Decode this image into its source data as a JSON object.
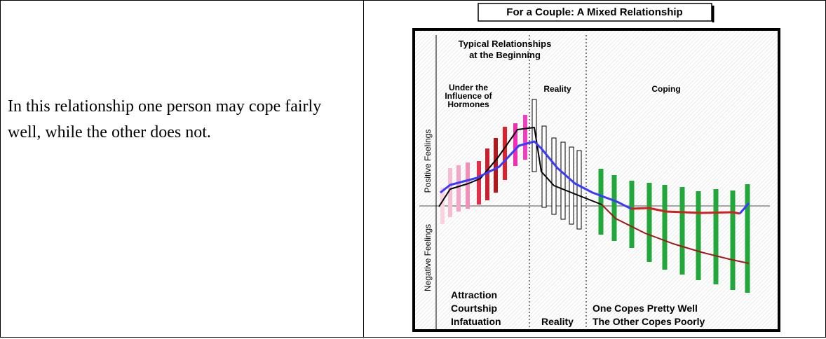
{
  "left_cell": {
    "text": "In this relationship one person may cope fairly well, while the other does not."
  },
  "diagram": {
    "title": "For a Couple: A Mixed Relationship",
    "header": [
      "Typical Relationships",
      "at the Beginning"
    ],
    "phase_labels": {
      "hormones": [
        "Under the",
        "Influence of",
        "Hormones"
      ],
      "reality": "Reality",
      "coping": "Coping"
    },
    "axis_labels": {
      "positive": "Positive Feelings",
      "negative": "Negative Feelings"
    },
    "bottom_labels": {
      "early": [
        "Attraction",
        "Courtship",
        "Infatuation"
      ],
      "reality": "Reality",
      "coping": [
        "One Copes Pretty Well",
        "The Other Copes Poorly"
      ]
    }
  }
}
